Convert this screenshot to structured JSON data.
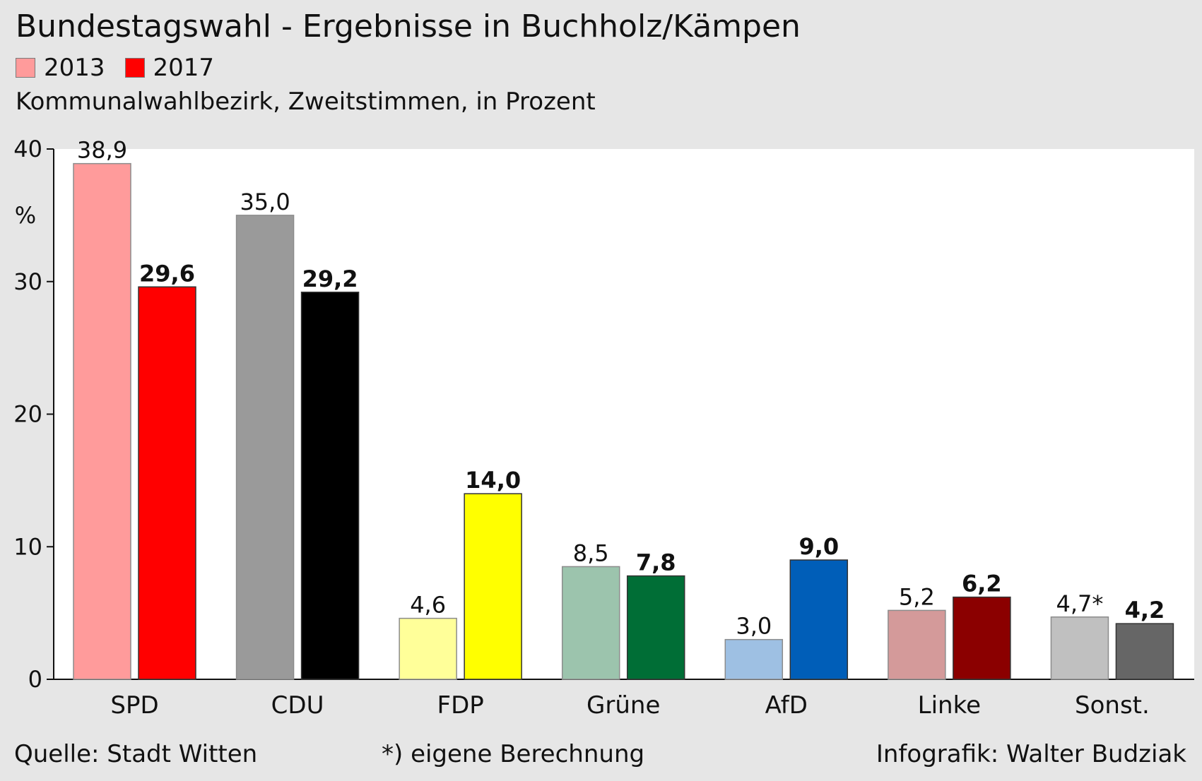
{
  "title": "Bundestagswahl -  Ergebnisse in Buchholz/Kämpen",
  "subtitle": "Kommunalwahlbezirk, Zweitstimmen, in Prozent",
  "source": "Quelle: Stadt Witten",
  "note": "*) eigene Berechnung",
  "credit": "Infografik: Walter Budziak",
  "chart_data": {
    "type": "bar",
    "categories": [
      "SPD",
      "CDU",
      "FDP",
      "Grüne",
      "AfD",
      "Linke",
      "Sonst."
    ],
    "series": [
      {
        "name": "2013",
        "values": [
          38.9,
          35.0,
          4.6,
          8.5,
          3.0,
          5.2,
          4.7
        ],
        "labels": [
          "38,9",
          "35,0",
          "4,6",
          "8,5",
          "3,0",
          "5,2",
          "4,7*"
        ],
        "colors": [
          "#ff9b9b",
          "#9a9a9a",
          "#ffff99",
          "#9cc4ad",
          "#9ec0e3",
          "#d49a9a",
          "#c0c0c0"
        ],
        "legend_color": "#ff9b9b"
      },
      {
        "name": "2017",
        "values": [
          29.6,
          29.2,
          14.0,
          7.8,
          9.0,
          6.2,
          4.2
        ],
        "labels": [
          "29,6",
          "29,2",
          "14,0",
          "7,8",
          "9,0",
          "6,2",
          "4,2"
        ],
        "colors": [
          "#ff0000",
          "#000000",
          "#ffff00",
          "#006e36",
          "#005eb8",
          "#8b0000",
          "#666666"
        ],
        "legend_color": "#ff0000"
      }
    ],
    "ylabel": "%",
    "ylim": [
      0,
      40
    ],
    "yticks": [
      "0",
      "10",
      "20",
      "30",
      "40"
    ],
    "grid": false,
    "legend_position": "top-left"
  }
}
